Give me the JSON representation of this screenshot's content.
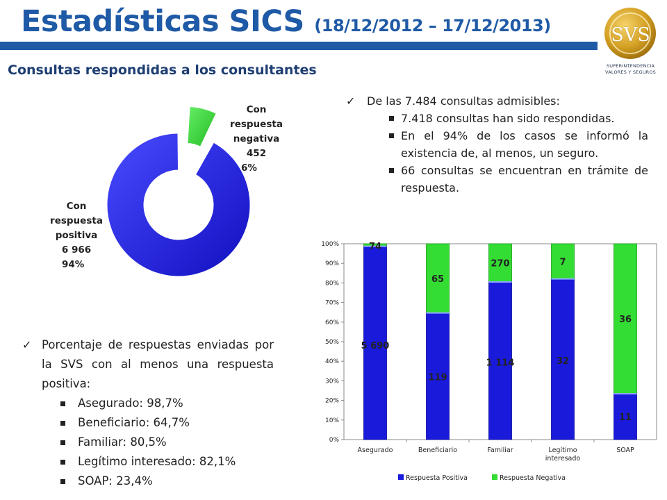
{
  "header": {
    "title": "Estadísticas SICS",
    "period": "(18/12/2012 – 17/12/2013)",
    "subtitle": "Consultas respondidas a los consultantes"
  },
  "logo": {
    "word": "SVS",
    "line1": "SUPERINTENDENCIA",
    "line2": "VALORES Y SEGUROS"
  },
  "points_top": {
    "lead": "De las 7.484 consultas admisibles:",
    "items": [
      "7.418 consultas han sido respondidas.",
      "En el 94% de los casos se informó la existencia de, al menos, un seguro.",
      "66 consultas se encuentran en trámite de respuesta."
    ]
  },
  "points_bottom": {
    "lead": "Porcentaje de respuestas enviadas por la SVS con al menos una respuesta positiva:",
    "items": [
      "Asegurado: 98,7%",
      "Beneficiario: 64,7%",
      "Familiar: 80,5%",
      "Legítimo interesado: 82,1%",
      "SOAP: 23,4%"
    ]
  },
  "chart_data": [
    {
      "type": "pie",
      "variant": "donut-exploded",
      "labels": [
        [
          "Con",
          "respuesta",
          "positiva",
          "6 966",
          "94%"
        ],
        [
          "Con",
          "respuesta",
          "negativa",
          "452",
          "6%"
        ]
      ],
      "values": [
        6966,
        452
      ],
      "percents": [
        94,
        6
      ],
      "colors": [
        "#1a1adb",
        "#33dd33"
      ]
    },
    {
      "type": "bar",
      "stacked": "percent",
      "categories": [
        "Asegurado",
        "Beneficiario",
        "Familiar",
        "Legítimo interesado",
        "SOAP"
      ],
      "category_labels": [
        [
          "Asegurado"
        ],
        [
          "Beneficiario"
        ],
        [
          "Familiar"
        ],
        [
          "Legítimo",
          "interesado"
        ],
        [
          "SOAP"
        ]
      ],
      "series": [
        {
          "name": "Respuesta Positiva",
          "values": [
            5690,
            119,
            1114,
            32,
            11
          ],
          "labels": [
            "5 690",
            "119",
            "1 114",
            "32",
            "11"
          ],
          "color": "#1a1adb"
        },
        {
          "name": "Respuesta Negativa",
          "values": [
            74,
            65,
            270,
            7,
            36
          ],
          "labels": [
            "74",
            "65",
            "270",
            "7",
            "36"
          ],
          "color": "#33dd33"
        }
      ],
      "ylim": [
        0,
        100
      ],
      "yticks": [
        "0%",
        "10%",
        "20%",
        "30%",
        "40%",
        "50%",
        "60%",
        "70%",
        "80%",
        "90%",
        "100%"
      ],
      "legend": "bottom",
      "grid": false
    }
  ]
}
